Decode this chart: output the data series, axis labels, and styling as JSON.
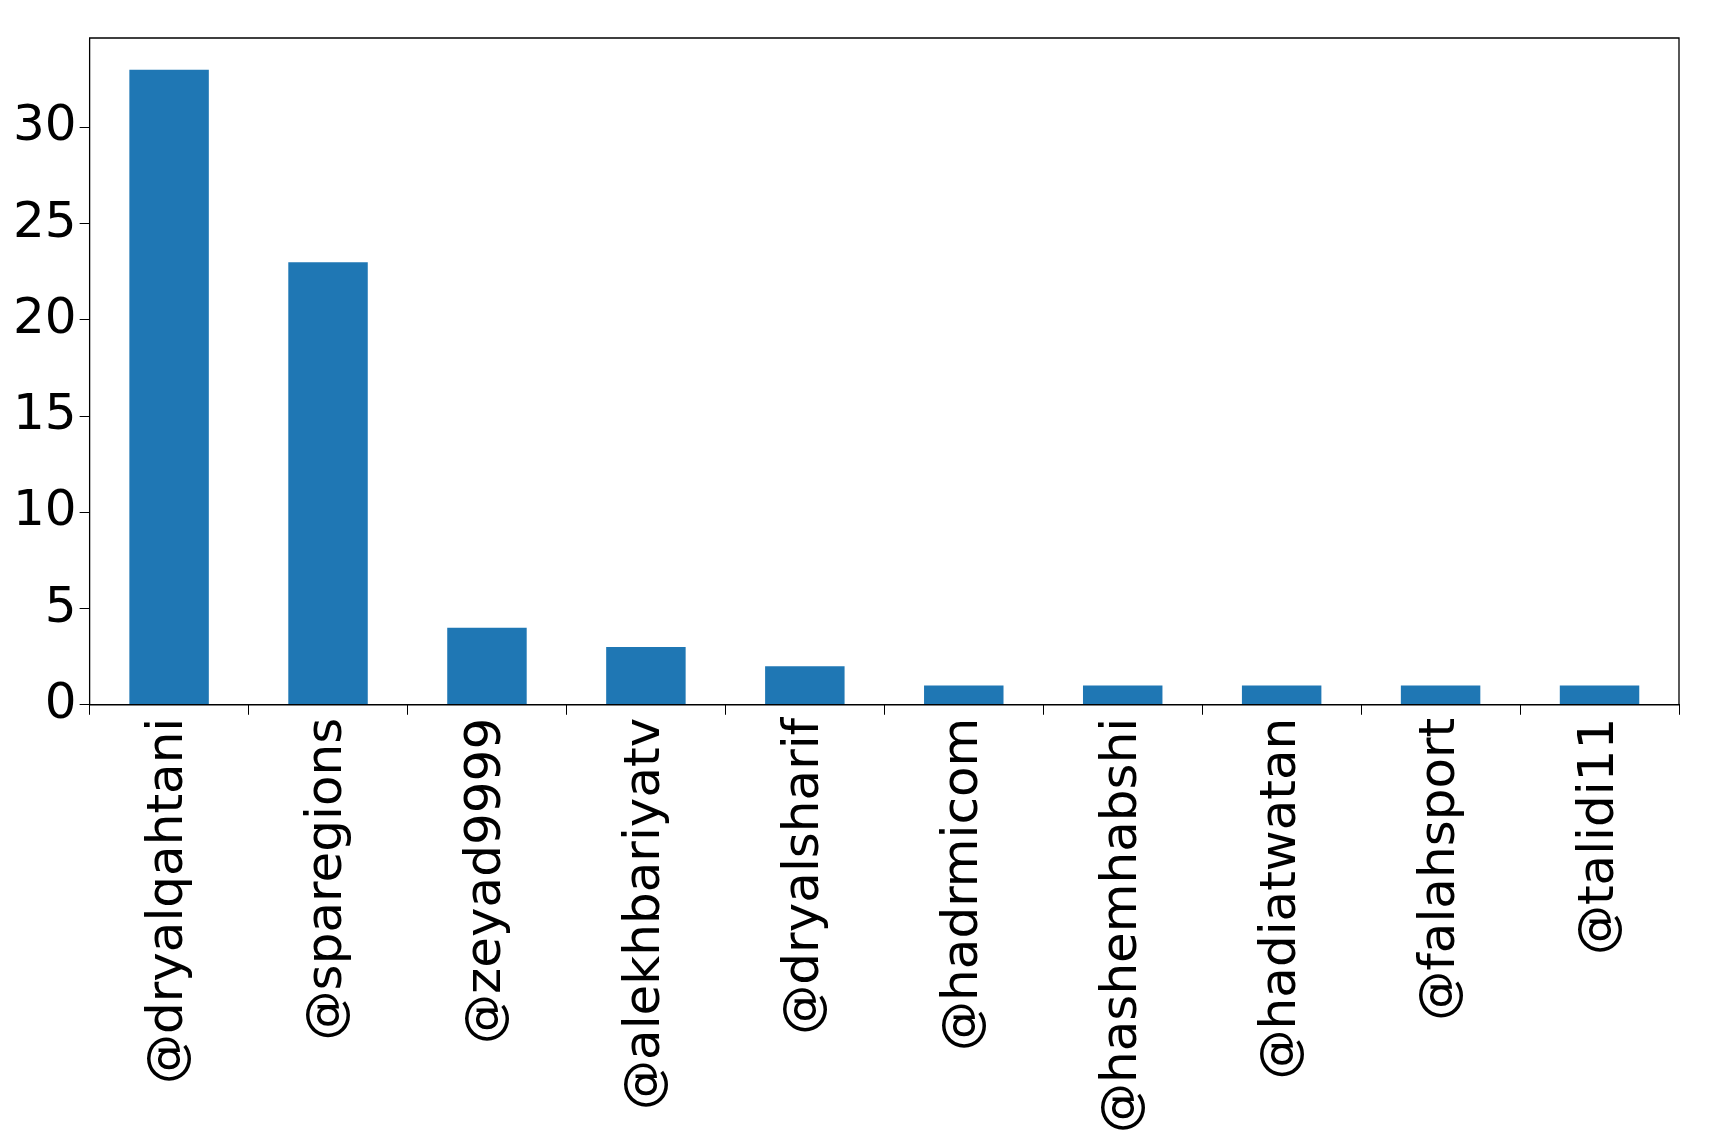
{
  "chart_data": {
    "type": "bar",
    "categories": [
      "@dryalqahtani",
      "@sparegions",
      "@zeyad9999",
      "@alekhbariyatv",
      "@dryalsharif",
      "@hadrmicom",
      "@hashemhabshi",
      "@hadiatwatan",
      "@falahsport",
      "@talidi11"
    ],
    "values": [
      33,
      23,
      4,
      3,
      2,
      1,
      1,
      1,
      1,
      1
    ],
    "color": "#1f77b4",
    "ylim": [
      0,
      34.65
    ],
    "yticks": [
      0,
      5,
      10,
      15,
      20,
      25,
      30
    ],
    "grid": false,
    "legend": false
  }
}
